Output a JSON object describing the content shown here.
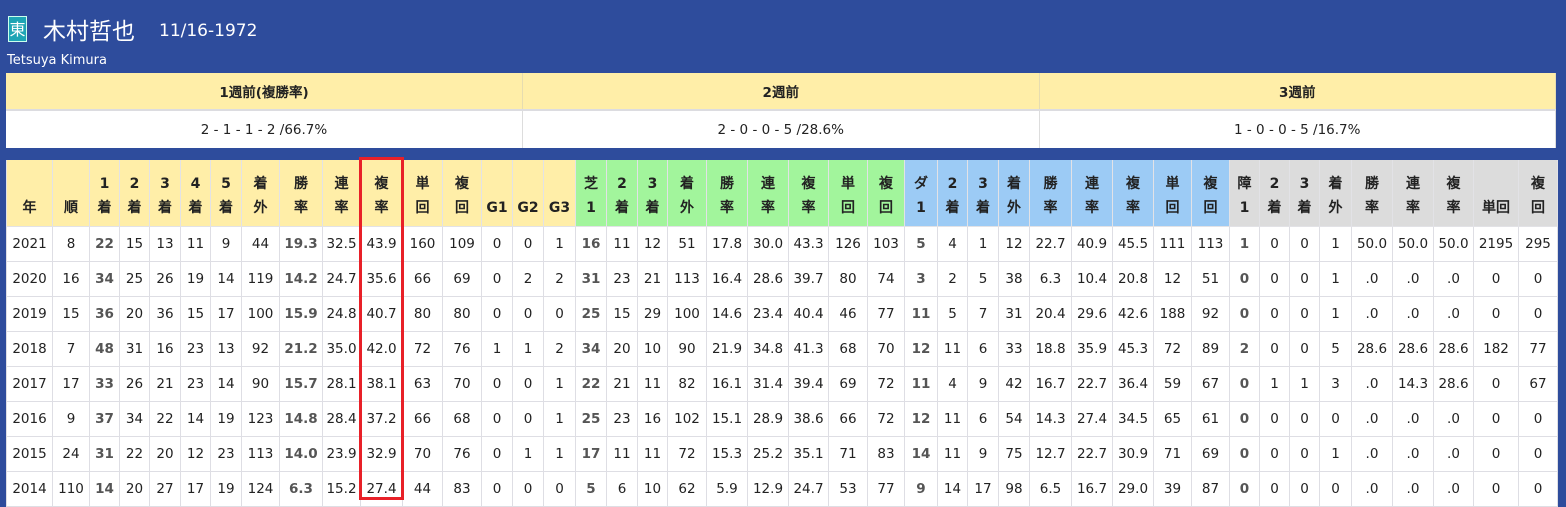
{
  "jockey": {
    "affiliation": "東",
    "name": "木村哲也",
    "birthdate": "11/16-1972",
    "name_en": "Tetsuya Kimura"
  },
  "recent_weeks": {
    "headers": [
      "1週前(複勝率)",
      "2週前",
      "3週前"
    ],
    "values": [
      "2 - 1 - 1 - 2 /66.7%",
      "2 - 0 - 0 - 5 /28.6%",
      "1 - 0 - 0 - 5 /16.7%"
    ]
  },
  "colors": {
    "total": "#ffeea8",
    "turf": "#a2f59c",
    "dirt": "#9ccbf5",
    "jump": "#dcdcdc",
    "highlight": "#e82028"
  },
  "highlighted_column": "複率",
  "stats": {
    "columns": [
      {
        "l": [
          "",
          "年"
        ],
        "g": "y"
      },
      {
        "l": [
          "",
          "順"
        ],
        "g": "y"
      },
      {
        "l": [
          "1",
          "着"
        ],
        "g": "y"
      },
      {
        "l": [
          "2",
          "着"
        ],
        "g": "y"
      },
      {
        "l": [
          "3",
          "着"
        ],
        "g": "y"
      },
      {
        "l": [
          "4",
          "着"
        ],
        "g": "y"
      },
      {
        "l": [
          "5",
          "着"
        ],
        "g": "y"
      },
      {
        "l": [
          "着",
          "外"
        ],
        "g": "y"
      },
      {
        "l": [
          "勝",
          "率"
        ],
        "g": "y"
      },
      {
        "l": [
          "連",
          "率"
        ],
        "g": "y"
      },
      {
        "l": [
          "複",
          "率"
        ],
        "g": "y"
      },
      {
        "l": [
          "単",
          "回"
        ],
        "g": "y"
      },
      {
        "l": [
          "複",
          "回"
        ],
        "g": "y"
      },
      {
        "l": [
          "",
          "G1"
        ],
        "g": "y"
      },
      {
        "l": [
          "",
          "G2"
        ],
        "g": "y"
      },
      {
        "l": [
          "",
          "G3"
        ],
        "g": "y"
      },
      {
        "l": [
          "芝",
          "1"
        ],
        "g": "g"
      },
      {
        "l": [
          "2",
          "着"
        ],
        "g": "g"
      },
      {
        "l": [
          "3",
          "着"
        ],
        "g": "g"
      },
      {
        "l": [
          "着",
          "外"
        ],
        "g": "g"
      },
      {
        "l": [
          "勝",
          "率"
        ],
        "g": "g"
      },
      {
        "l": [
          "連",
          "率"
        ],
        "g": "g"
      },
      {
        "l": [
          "複",
          "率"
        ],
        "g": "g"
      },
      {
        "l": [
          "単",
          "回"
        ],
        "g": "g"
      },
      {
        "l": [
          "複",
          "回"
        ],
        "g": "g"
      },
      {
        "l": [
          "ダ",
          "1"
        ],
        "g": "bl"
      },
      {
        "l": [
          "2",
          "着"
        ],
        "g": "bl"
      },
      {
        "l": [
          "3",
          "着"
        ],
        "g": "bl"
      },
      {
        "l": [
          "着",
          "外"
        ],
        "g": "bl"
      },
      {
        "l": [
          "勝",
          "率"
        ],
        "g": "bl"
      },
      {
        "l": [
          "連",
          "率"
        ],
        "g": "bl"
      },
      {
        "l": [
          "複",
          "率"
        ],
        "g": "bl"
      },
      {
        "l": [
          "単",
          "回"
        ],
        "g": "bl"
      },
      {
        "l": [
          "複",
          "回"
        ],
        "g": "bl"
      },
      {
        "l": [
          "障",
          "1"
        ],
        "g": "gr"
      },
      {
        "l": [
          "2",
          "着"
        ],
        "g": "gr"
      },
      {
        "l": [
          "3",
          "着"
        ],
        "g": "gr"
      },
      {
        "l": [
          "着",
          "外"
        ],
        "g": "gr"
      },
      {
        "l": [
          "勝",
          "率"
        ],
        "g": "gr"
      },
      {
        "l": [
          "連",
          "率"
        ],
        "g": "gr"
      },
      {
        "l": [
          "複",
          "率"
        ],
        "g": "gr"
      },
      {
        "l": [
          "",
          "単回"
        ],
        "g": "gr"
      },
      {
        "l": [
          "複",
          "回"
        ],
        "g": "gr"
      }
    ],
    "rows": [
      [
        "2021",
        "8",
        "22",
        "15",
        "13",
        "11",
        "9",
        "44",
        "19.3",
        "32.5",
        "43.9",
        "160",
        "109",
        "0",
        "0",
        "1",
        "16",
        "11",
        "12",
        "51",
        "17.8",
        "30.0",
        "43.3",
        "126",
        "103",
        "5",
        "4",
        "1",
        "12",
        "22.7",
        "40.9",
        "45.5",
        "111",
        "113",
        "1",
        "0",
        "0",
        "1",
        "50.0",
        "50.0",
        "50.0",
        "2195",
        "295"
      ],
      [
        "2020",
        "16",
        "34",
        "25",
        "26",
        "19",
        "14",
        "119",
        "14.2",
        "24.7",
        "35.6",
        "66",
        "69",
        "0",
        "2",
        "2",
        "31",
        "23",
        "21",
        "113",
        "16.4",
        "28.6",
        "39.7",
        "80",
        "74",
        "3",
        "2",
        "5",
        "38",
        "6.3",
        "10.4",
        "20.8",
        "12",
        "51",
        "0",
        "0",
        "0",
        "1",
        ".0",
        ".0",
        ".0",
        "0",
        "0"
      ],
      [
        "2019",
        "15",
        "36",
        "20",
        "36",
        "15",
        "17",
        "100",
        "15.9",
        "24.8",
        "40.7",
        "80",
        "80",
        "0",
        "0",
        "0",
        "25",
        "15",
        "29",
        "100",
        "14.6",
        "23.4",
        "40.4",
        "46",
        "77",
        "11",
        "5",
        "7",
        "31",
        "20.4",
        "29.6",
        "42.6",
        "188",
        "92",
        "0",
        "0",
        "0",
        "1",
        ".0",
        ".0",
        ".0",
        "0",
        "0"
      ],
      [
        "2018",
        "7",
        "48",
        "31",
        "16",
        "23",
        "13",
        "92",
        "21.2",
        "35.0",
        "42.0",
        "72",
        "76",
        "1",
        "1",
        "2",
        "34",
        "20",
        "10",
        "90",
        "21.9",
        "34.8",
        "41.3",
        "68",
        "70",
        "12",
        "11",
        "6",
        "33",
        "18.8",
        "35.9",
        "45.3",
        "72",
        "89",
        "2",
        "0",
        "0",
        "5",
        "28.6",
        "28.6",
        "28.6",
        "182",
        "77"
      ],
      [
        "2017",
        "17",
        "33",
        "26",
        "21",
        "23",
        "14",
        "90",
        "15.7",
        "28.1",
        "38.1",
        "63",
        "70",
        "0",
        "0",
        "1",
        "22",
        "21",
        "11",
        "82",
        "16.1",
        "31.4",
        "39.4",
        "69",
        "72",
        "11",
        "4",
        "9",
        "42",
        "16.7",
        "22.7",
        "36.4",
        "59",
        "67",
        "0",
        "1",
        "1",
        "3",
        ".0",
        "14.3",
        "28.6",
        "0",
        "67"
      ],
      [
        "2016",
        "9",
        "37",
        "34",
        "22",
        "14",
        "19",
        "123",
        "14.8",
        "28.4",
        "37.2",
        "66",
        "68",
        "0",
        "0",
        "1",
        "25",
        "23",
        "16",
        "102",
        "15.1",
        "28.9",
        "38.6",
        "66",
        "72",
        "12",
        "11",
        "6",
        "54",
        "14.3",
        "27.4",
        "34.5",
        "65",
        "61",
        "0",
        "0",
        "0",
        "0",
        ".0",
        ".0",
        ".0",
        "0",
        "0"
      ],
      [
        "2015",
        "24",
        "31",
        "22",
        "20",
        "12",
        "23",
        "113",
        "14.0",
        "23.9",
        "32.9",
        "70",
        "76",
        "0",
        "1",
        "1",
        "17",
        "11",
        "11",
        "72",
        "15.3",
        "25.2",
        "35.1",
        "71",
        "83",
        "14",
        "11",
        "9",
        "75",
        "12.7",
        "22.7",
        "30.9",
        "71",
        "69",
        "0",
        "0",
        "0",
        "1",
        ".0",
        ".0",
        ".0",
        "0",
        "0"
      ],
      [
        "2014",
        "110",
        "14",
        "20",
        "27",
        "17",
        "19",
        "124",
        "6.3",
        "15.2",
        "27.4",
        "44",
        "83",
        "0",
        "0",
        "0",
        "5",
        "6",
        "10",
        "62",
        "5.9",
        "12.9",
        "24.7",
        "53",
        "77",
        "9",
        "14",
        "17",
        "98",
        "6.5",
        "16.7",
        "29.0",
        "39",
        "87",
        "0",
        "0",
        "0",
        "0",
        ".0",
        ".0",
        ".0",
        "0",
        "0"
      ]
    ]
  }
}
